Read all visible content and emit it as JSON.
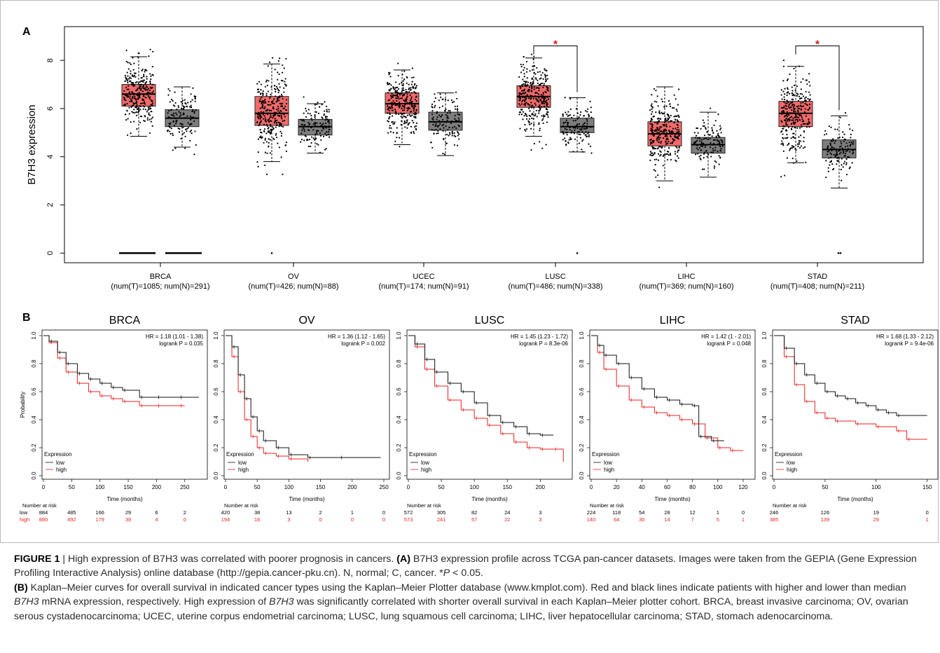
{
  "figure": {
    "caption": {
      "label": "FIGURE 1",
      "sep": " | ",
      "text1": "High expression of B7H3 was correlated with poorer prognosis in cancers. ",
      "a_tag": "(A)",
      "text2": " B7H3 expression profile across TCGA pan-cancer datasets. Images were taken from the GEPIA (Gene Expression Profiling Interactive Analysis) online database (http://gepia.cancer-pku.cn). N, normal; C, cancer. *",
      "p_italic": "P",
      "text3": " < 0.05.",
      "b_tag": "(B)",
      "text4": " Kaplan–Meier curves for overall survival in indicated cancer types using the Kaplan–Meier Plotter database (www.kmplot.com). Red and black lines indicate patients with higher and lower than median ",
      "gene1": "B7H3",
      "text5": " mRNA expression, respectively. High expression of ",
      "gene2": "B7H3",
      "text6": " was significantly correlated with shorter overall survival in each Kaplan–Meier plotter cohort. BRCA, breast invasive carcinoma; OV, ovarian serous cystadenocarcinoma; UCEC, uterine corpus endometrial carcinoma; LUSC, lung squamous cell carcinoma; LIHC, liver hepatocellular carcinoma; STAD, stomach adenocarcinoma."
    }
  },
  "colors": {
    "tumor": "#f26a6a",
    "normal": "#7d7d7d",
    "red_line": "#e8221f",
    "black_line": "#111111",
    "star": "#d42020"
  },
  "chart_data": [
    {
      "panel": "A",
      "type": "box",
      "ylabel": "B7H3 expression",
      "ylim": [
        -0.4,
        9.4
      ],
      "yticks": [
        0,
        2,
        4,
        6,
        8
      ],
      "categories": [
        {
          "name": "BRCA",
          "sub": "(num(T)=1085; num(N)=291)",
          "star": false,
          "tumor": {
            "q1": 6.1,
            "med": 6.6,
            "q3": 7.0,
            "lo": 4.85,
            "hi": 8.15
          },
          "normal": {
            "q1": 5.25,
            "med": 5.6,
            "q3": 5.95,
            "lo": 4.4,
            "hi": 6.9
          }
        },
        {
          "name": "OV",
          "sub": "(num(T)=426; num(N)=88)",
          "star": false,
          "tumor": {
            "q1": 5.3,
            "med": 5.8,
            "q3": 6.5,
            "lo": 3.8,
            "hi": 7.85
          },
          "normal": {
            "q1": 4.9,
            "med": 5.25,
            "q3": 5.55,
            "lo": 4.15,
            "hi": 6.2
          }
        },
        {
          "name": "UCEC",
          "sub": "(num(T)=174; num(N)=91)",
          "star": false,
          "tumor": {
            "q1": 5.8,
            "med": 6.2,
            "q3": 6.65,
            "lo": 4.5,
            "hi": 7.6
          },
          "normal": {
            "q1": 5.1,
            "med": 5.45,
            "q3": 5.85,
            "lo": 4.05,
            "hi": 6.65
          }
        },
        {
          "name": "LUSC",
          "sub": "(num(T)=486; num(N)=338)",
          "star": true,
          "tumor": {
            "q1": 6.05,
            "med": 6.5,
            "q3": 6.95,
            "lo": 4.85,
            "hi": 8.1
          },
          "normal": {
            "q1": 5.0,
            "med": 5.25,
            "q3": 5.6,
            "lo": 4.2,
            "hi": 6.45
          }
        },
        {
          "name": "LIHC",
          "sub": "(num(T)=369; num(N)=160)",
          "star": false,
          "tumor": {
            "q1": 4.45,
            "med": 4.95,
            "q3": 5.45,
            "lo": 3.0,
            "hi": 6.9
          },
          "normal": {
            "q1": 4.15,
            "med": 4.5,
            "q3": 4.8,
            "lo": 3.15,
            "hi": 5.85
          }
        },
        {
          "name": "STAD",
          "sub": "(num(T)=408; num(N)=211)",
          "star": true,
          "tumor": {
            "q1": 5.25,
            "med": 5.8,
            "q3": 6.3,
            "lo": 3.75,
            "hi": 7.75
          },
          "normal": {
            "q1": 3.95,
            "med": 4.3,
            "q3": 4.7,
            "lo": 2.7,
            "hi": 5.7
          }
        }
      ]
    },
    {
      "panel": "B",
      "type": "line",
      "ylabel": "Probability",
      "ylim": [
        0,
        1
      ],
      "yticks": [
        "0.0",
        "0.2",
        "0.4",
        "0.6",
        "0.8",
        "1.0"
      ],
      "xlabel": "Time (months)",
      "legend_title": "Expression",
      "legend_low": "low",
      "legend_high": "high",
      "risk_title": "Number at risk",
      "panels": [
        {
          "title": "BRCA",
          "hr": "HR = 1.18 (1.01 - 1.38)",
          "p": "logrank P = 0.035",
          "xmax": 280,
          "xticks": [
            0,
            50,
            100,
            150,
            200,
            250
          ],
          "low": {
            "x": [
              0,
              10,
              25,
              40,
              60,
              80,
              100,
              120,
              140,
              170,
              200,
              240,
              275
            ],
            "y": [
              1,
              0.96,
              0.88,
              0.8,
              0.73,
              0.69,
              0.66,
              0.63,
              0.61,
              0.56,
              0.56,
              0.56,
              0.56
            ]
          },
          "high": {
            "x": [
              0,
              10,
              25,
              40,
              60,
              80,
              100,
              120,
              140,
              170,
              200,
              240,
              250
            ],
            "y": [
              1,
              0.95,
              0.84,
              0.74,
              0.66,
              0.6,
              0.57,
              0.55,
              0.53,
              0.5,
              0.5,
              0.5,
              0.5
            ]
          },
          "risk_low": [
            "884",
            "485",
            "166",
            "29",
            "6",
            "2"
          ],
          "risk_high": [
            "880",
            "492",
            "179",
            "39",
            "4",
            "0"
          ]
        },
        {
          "title": "OV",
          "hr": "HR = 1.36 (1.12 - 1.65)",
          "p": "logrank P = 0.002",
          "xmax": 250,
          "xticks": [
            0,
            50,
            100,
            150,
            200,
            250
          ],
          "low": {
            "x": [
              0,
              10,
              20,
              30,
              40,
              50,
              60,
              80,
              100,
              130,
              180,
              245
            ],
            "y": [
              1,
              0.92,
              0.72,
              0.55,
              0.42,
              0.32,
              0.25,
              0.2,
              0.15,
              0.13,
              0.13,
              0.13
            ]
          },
          "high": {
            "x": [
              0,
              10,
              20,
              30,
              40,
              50,
              60,
              80,
              100,
              130
            ],
            "y": [
              1,
              0.85,
              0.6,
              0.4,
              0.28,
              0.2,
              0.16,
              0.14,
              0.12,
              0.1
            ]
          },
          "risk_low": [
            "420",
            "38",
            "13",
            "2",
            "1",
            "0"
          ],
          "risk_high": [
            "194",
            "16",
            "3",
            "0",
            "0",
            "0"
          ]
        },
        {
          "title": "LUSC",
          "hr": "HR = 1.45 (1.23 - 1.72)",
          "p": "logrank P = 8.3e-06",
          "xmax": 240,
          "xticks": [
            0,
            50,
            100,
            150,
            200
          ],
          "low": {
            "x": [
              0,
              10,
              25,
              40,
              60,
              80,
              100,
              120,
              140,
              160,
              180,
              200,
              220
            ],
            "y": [
              1,
              0.94,
              0.83,
              0.74,
              0.66,
              0.6,
              0.52,
              0.43,
              0.38,
              0.35,
              0.3,
              0.29,
              0.29
            ]
          },
          "high": {
            "x": [
              0,
              10,
              25,
              40,
              60,
              80,
              100,
              120,
              140,
              160,
              180,
              200,
              220,
              235
            ],
            "y": [
              1,
              0.92,
              0.76,
              0.64,
              0.54,
              0.47,
              0.41,
              0.36,
              0.3,
              0.24,
              0.2,
              0.19,
              0.19,
              0.1
            ]
          },
          "risk_low": [
            "572",
            "305",
            "82",
            "24",
            "3"
          ],
          "risk_high": [
            "573",
            "241",
            "57",
            "22",
            "3"
          ]
        },
        {
          "title": "LIHC",
          "hr": "HR = 1.42 (1 - 2.01)",
          "p": "logrank P = 0.048",
          "xmax": 125,
          "xticks": [
            0,
            20,
            40,
            60,
            80,
            100,
            120
          ],
          "low": {
            "x": [
              0,
              5,
              10,
              20,
              30,
              40,
              50,
              60,
              70,
              80,
              85,
              95,
              105
            ],
            "y": [
              1,
              0.93,
              0.86,
              0.8,
              0.7,
              0.62,
              0.56,
              0.54,
              0.51,
              0.5,
              0.28,
              0.25,
              0.25
            ]
          },
          "high": {
            "x": [
              0,
              5,
              10,
              20,
              30,
              40,
              50,
              60,
              70,
              80,
              90,
              100,
              110,
              120
            ],
            "y": [
              1,
              0.88,
              0.76,
              0.64,
              0.54,
              0.49,
              0.45,
              0.43,
              0.4,
              0.37,
              0.27,
              0.2,
              0.18,
              0.18
            ]
          },
          "risk_low": [
            "224",
            "118",
            "54",
            "28",
            "12",
            "1",
            "0"
          ],
          "risk_high": [
            "140",
            "64",
            "30",
            "14",
            "7",
            "5",
            "1"
          ]
        },
        {
          "title": "STAD",
          "hr": "HR = 1.68 (1.33 - 2.12)",
          "p": "logrank P = 9.4e-06",
          "xmax": 155,
          "xticks": [
            0,
            50,
            100,
            150
          ],
          "low": {
            "x": [
              0,
              10,
              20,
              30,
              40,
              50,
              60,
              70,
              80,
              90,
              100,
              110,
              120,
              150
            ],
            "y": [
              1,
              0.91,
              0.8,
              0.72,
              0.66,
              0.6,
              0.57,
              0.55,
              0.52,
              0.5,
              0.47,
              0.45,
              0.43,
              0.43
            ]
          },
          "high": {
            "x": [
              0,
              10,
              20,
              30,
              40,
              50,
              60,
              80,
              100,
              120,
              130,
              150
            ],
            "y": [
              1,
              0.85,
              0.65,
              0.53,
              0.45,
              0.41,
              0.39,
              0.37,
              0.35,
              0.32,
              0.26,
              0.26
            ]
          },
          "risk_low": [
            "246",
            "126",
            "19",
            "0"
          ],
          "risk_high": [
            "385",
            "139",
            "29",
            "1"
          ]
        }
      ]
    }
  ]
}
